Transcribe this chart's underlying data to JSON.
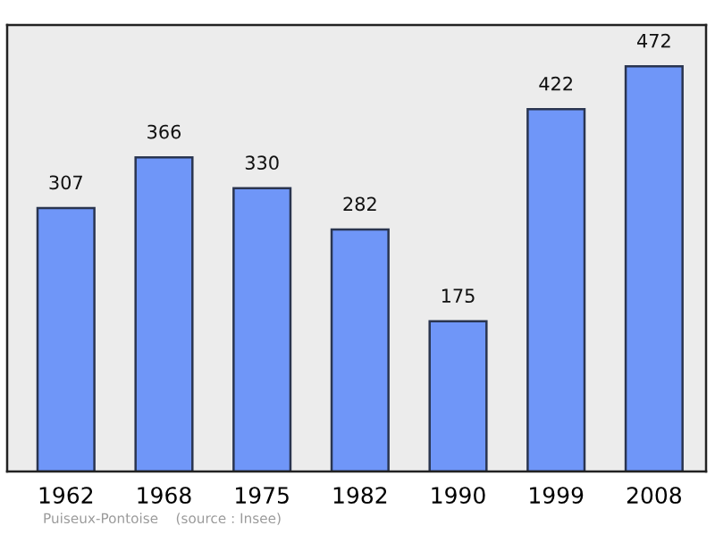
{
  "chart_data": {
    "type": "bar",
    "categories": [
      "1962",
      "1968",
      "1975",
      "1982",
      "1990",
      "1999",
      "2008"
    ],
    "values": [
      307,
      366,
      330,
      282,
      175,
      422,
      472
    ],
    "color": "#6f96f8",
    "ylim": [
      0,
      520
    ],
    "data_labels": true,
    "grid": false,
    "annotations": [
      "Puiseux-Pontoise    (source : Insee)"
    ]
  }
}
